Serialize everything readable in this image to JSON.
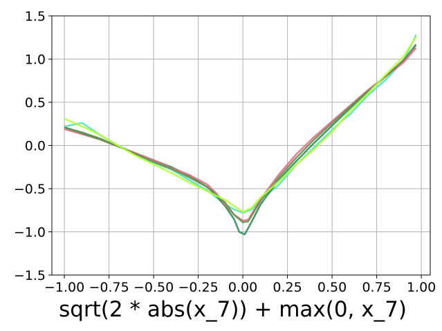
{
  "chart_data": {
    "type": "line",
    "title": "",
    "xlabel": "sqrt(2 * abs(x_7)) + max(0, x_7)",
    "ylabel": "",
    "xlim": [
      -1.07,
      1.05
    ],
    "ylim": [
      -1.5,
      1.5
    ],
    "xticks": [
      -1.0,
      -0.75,
      -0.5,
      -0.25,
      0.0,
      0.25,
      0.5,
      0.75,
      1.0
    ],
    "xtick_labels": [
      "−1.00",
      "−0.75",
      "−0.50",
      "−0.25",
      "0.00",
      "0.25",
      "0.50",
      "0.75",
      "1.00"
    ],
    "yticks": [
      -1.5,
      -1.0,
      -0.5,
      0.0,
      0.5,
      1.0,
      1.5
    ],
    "ytick_labels": [
      "−1.5",
      "−1.0",
      "−0.5",
      "0.0",
      "0.5",
      "1.0",
      "1.5"
    ],
    "grid": true,
    "series": [
      {
        "color": "#50e6b4",
        "points": [
          [
            -1.0,
            0.22
          ],
          [
            -0.9,
            0.26
          ],
          [
            -0.8,
            0.12
          ],
          [
            -0.7,
            0.0
          ],
          [
            -0.6,
            -0.1
          ],
          [
            -0.5,
            -0.2
          ],
          [
            -0.4,
            -0.28
          ],
          [
            -0.3,
            -0.4
          ],
          [
            -0.2,
            -0.52
          ],
          [
            -0.1,
            -0.68
          ],
          [
            -0.05,
            -0.74
          ],
          [
            0.0,
            -0.78
          ],
          [
            0.05,
            -0.74
          ],
          [
            0.1,
            -0.62
          ],
          [
            0.2,
            -0.46
          ],
          [
            0.3,
            -0.22
          ],
          [
            0.4,
            -0.02
          ],
          [
            0.5,
            0.18
          ],
          [
            0.55,
            0.28
          ],
          [
            0.6,
            0.36
          ],
          [
            0.7,
            0.58
          ],
          [
            0.8,
            0.76
          ],
          [
            0.9,
            0.98
          ],
          [
            0.97,
            1.28
          ]
        ]
      },
      {
        "color": "#2e8b57",
        "points": [
          [
            -1.0,
            0.21
          ],
          [
            -0.9,
            0.15
          ],
          [
            -0.8,
            0.08
          ],
          [
            -0.7,
            -0.01
          ],
          [
            -0.6,
            -0.09
          ],
          [
            -0.5,
            -0.17
          ],
          [
            -0.4,
            -0.25
          ],
          [
            -0.3,
            -0.35
          ],
          [
            -0.2,
            -0.48
          ],
          [
            -0.15,
            -0.58
          ],
          [
            -0.1,
            -0.7
          ],
          [
            -0.05,
            -0.85
          ],
          [
            -0.02,
            -1.0
          ],
          [
            0.01,
            -1.03
          ],
          [
            0.05,
            -0.88
          ],
          [
            0.1,
            -0.68
          ],
          [
            0.2,
            -0.4
          ],
          [
            0.3,
            -0.18
          ],
          [
            0.4,
            0.03
          ],
          [
            0.5,
            0.23
          ],
          [
            0.6,
            0.43
          ],
          [
            0.7,
            0.62
          ],
          [
            0.8,
            0.8
          ],
          [
            0.9,
            0.98
          ],
          [
            0.97,
            1.17
          ]
        ]
      },
      {
        "color": "#e0708a",
        "points": [
          [
            -1.0,
            0.19
          ],
          [
            -0.9,
            0.13
          ],
          [
            -0.8,
            0.07
          ],
          [
            -0.7,
            -0.01
          ],
          [
            -0.6,
            -0.09
          ],
          [
            -0.5,
            -0.17
          ],
          [
            -0.4,
            -0.26
          ],
          [
            -0.3,
            -0.34
          ],
          [
            -0.2,
            -0.45
          ],
          [
            -0.15,
            -0.55
          ],
          [
            -0.1,
            -0.68
          ],
          [
            -0.05,
            -0.8
          ],
          [
            0.0,
            -0.87
          ],
          [
            0.03,
            -0.86
          ],
          [
            0.1,
            -0.62
          ],
          [
            0.2,
            -0.34
          ],
          [
            0.3,
            -0.1
          ],
          [
            0.4,
            0.1
          ],
          [
            0.5,
            0.28
          ],
          [
            0.6,
            0.46
          ],
          [
            0.7,
            0.64
          ],
          [
            0.8,
            0.8
          ],
          [
            0.9,
            0.96
          ],
          [
            0.97,
            1.13
          ]
        ]
      },
      {
        "color": "#6b8e4e",
        "points": [
          [
            -1.0,
            0.21
          ],
          [
            -0.9,
            0.14
          ],
          [
            -0.8,
            0.07
          ],
          [
            -0.7,
            -0.01
          ],
          [
            -0.6,
            -0.1
          ],
          [
            -0.5,
            -0.19
          ],
          [
            -0.4,
            -0.27
          ],
          [
            -0.3,
            -0.37
          ],
          [
            -0.2,
            -0.48
          ],
          [
            -0.1,
            -0.66
          ],
          [
            -0.05,
            -0.8
          ],
          [
            0.0,
            -0.89
          ],
          [
            0.03,
            -0.88
          ],
          [
            0.1,
            -0.64
          ],
          [
            0.2,
            -0.37
          ],
          [
            0.3,
            -0.14
          ],
          [
            0.4,
            0.07
          ],
          [
            0.5,
            0.26
          ],
          [
            0.6,
            0.45
          ],
          [
            0.7,
            0.63
          ],
          [
            0.8,
            0.8
          ],
          [
            0.9,
            0.99
          ],
          [
            0.97,
            1.16
          ]
        ]
      },
      {
        "color": "#b6ff3a",
        "points": [
          [
            -1.0,
            0.31
          ],
          [
            -0.9,
            0.22
          ],
          [
            -0.8,
            0.12
          ],
          [
            -0.7,
            0.0
          ],
          [
            -0.6,
            -0.12
          ],
          [
            -0.5,
            -0.22
          ],
          [
            -0.4,
            -0.32
          ],
          [
            -0.3,
            -0.43
          ],
          [
            -0.2,
            -0.53
          ],
          [
            -0.1,
            -0.63
          ],
          [
            -0.05,
            -0.7
          ],
          [
            0.0,
            -0.77
          ],
          [
            0.05,
            -0.72
          ],
          [
            0.1,
            -0.6
          ],
          [
            0.2,
            -0.42
          ],
          [
            0.3,
            -0.22
          ],
          [
            0.4,
            -0.04
          ],
          [
            0.5,
            0.16
          ],
          [
            0.6,
            0.4
          ],
          [
            0.7,
            0.6
          ],
          [
            0.8,
            0.82
          ],
          [
            0.9,
            1.03
          ],
          [
            0.97,
            1.26
          ]
        ]
      }
    ]
  }
}
